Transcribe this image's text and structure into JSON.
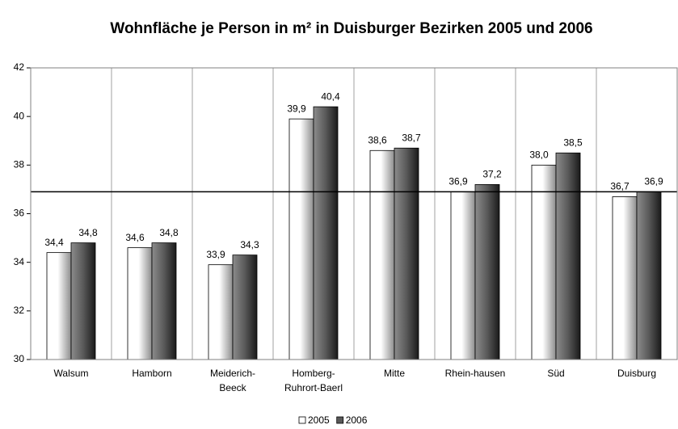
{
  "chart_data": {
    "type": "bar",
    "title": "Wohnfläche je Person in m² in Duisburger Bezirken 2005 und 2006",
    "categories": [
      "Walsum",
      "Hamborn",
      "Meiderich-Beeck",
      "Homberg-Ruhrort-Baerl",
      "Mitte",
      "Rhein-hausen",
      "Süd",
      "Duisburg"
    ],
    "series": [
      {
        "name": "2005",
        "color": "#d9d9d9",
        "values": [
          34.4,
          34.6,
          33.9,
          39.9,
          38.6,
          36.9,
          38.0,
          36.7
        ],
        "value_labels": [
          "34,4",
          "34,6",
          "33,9",
          "39,9",
          "38,6",
          "36,9",
          "38,0",
          "36,7"
        ]
      },
      {
        "name": "2006",
        "color": "#595959",
        "values": [
          34.8,
          34.8,
          34.3,
          40.4,
          38.7,
          37.2,
          38.5,
          36.9
        ],
        "value_labels": [
          "34,8",
          "34,8",
          "34,3",
          "40,4",
          "38,7",
          "37,2",
          "38,5",
          "36,9"
        ]
      }
    ],
    "reference_line": 36.9,
    "ylim": [
      30,
      42
    ],
    "yticks": [
      30,
      32,
      34,
      36,
      38,
      40,
      42
    ],
    "legend": "bottom"
  }
}
